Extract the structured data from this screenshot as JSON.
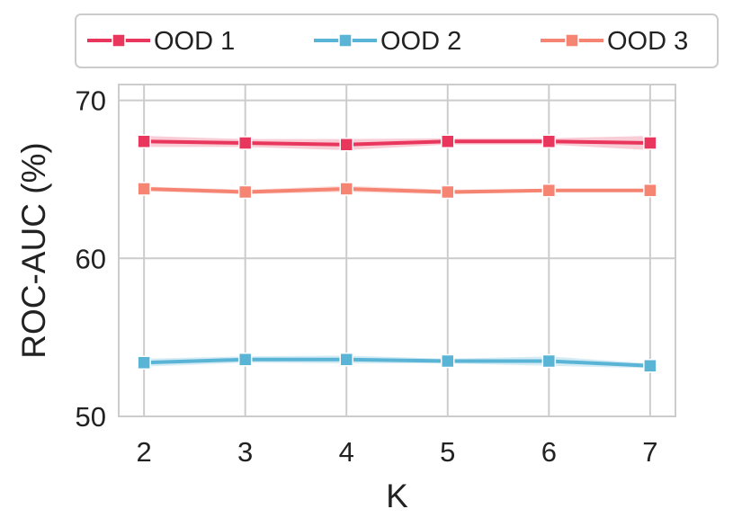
{
  "chart_data": {
    "type": "line",
    "xlabel": "K",
    "ylabel": "ROC-AUC (%)",
    "x": [
      2,
      3,
      4,
      5,
      6,
      7
    ],
    "xlim": [
      1.75,
      7.25
    ],
    "ylim": [
      50,
      71
    ],
    "yticks": [
      50,
      60,
      70
    ],
    "grid": true,
    "legend_position": "top",
    "series": [
      {
        "name": "OOD 1",
        "color": "#e8365d",
        "values": [
          67.4,
          67.3,
          67.2,
          67.4,
          67.4,
          67.3
        ],
        "band": [
          0.35,
          0.25,
          0.35,
          0.2,
          0.2,
          0.45
        ]
      },
      {
        "name": "OOD 2",
        "color": "#5ab4d6",
        "values": [
          53.4,
          53.6,
          53.6,
          53.5,
          53.5,
          53.2
        ],
        "band": [
          0.25,
          0.2,
          0.25,
          0.15,
          0.3,
          0.15
        ]
      },
      {
        "name": "OOD 3",
        "color": "#f58473",
        "values": [
          64.4,
          64.2,
          64.4,
          64.2,
          64.3,
          64.3
        ],
        "band": [
          0.15,
          0.15,
          0.2,
          0.15,
          0.1,
          0.1
        ]
      }
    ]
  }
}
